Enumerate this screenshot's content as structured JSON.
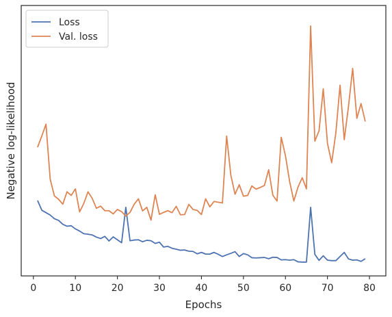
{
  "chart_data": {
    "type": "line",
    "title": "",
    "xlabel": "Epochs",
    "ylabel": "Negative log-likelihood",
    "xlim": [
      -2.9,
      83.9
    ],
    "ylim": [
      0,
      100
    ],
    "xticks": [
      0,
      10,
      20,
      30,
      40,
      50,
      60,
      70,
      80
    ],
    "y_tick_labels_shown": false,
    "grid": false,
    "legend": "upper left",
    "x": [
      1,
      2,
      3,
      4,
      5,
      6,
      7,
      8,
      9,
      10,
      11,
      12,
      13,
      14,
      15,
      16,
      17,
      18,
      19,
      20,
      21,
      22,
      23,
      24,
      25,
      26,
      27,
      28,
      29,
      30,
      31,
      32,
      33,
      34,
      35,
      36,
      37,
      38,
      39,
      40,
      41,
      42,
      43,
      44,
      45,
      46,
      47,
      48,
      49,
      50,
      51,
      52,
      53,
      54,
      55,
      56,
      57,
      58,
      59,
      60,
      61,
      62,
      63,
      64,
      65,
      66,
      67,
      68,
      69,
      70,
      71,
      72,
      73,
      74,
      75,
      76,
      77,
      78,
      79
    ],
    "series": [
      {
        "name": "Loss",
        "color": "#4c72b0",
        "values": [
          28,
          24,
          23,
          22,
          20.5,
          19.8,
          18.2,
          17.4,
          17.6,
          16.3,
          15.4,
          14.3,
          14.1,
          13.8,
          12.9,
          12.3,
          13.2,
          11.3,
          13,
          11.8,
          10.6,
          25.2,
          11.4,
          11.7,
          11.8,
          11,
          11.6,
          11.4,
          10.3,
          10.8,
          8.8,
          9.1,
          8.3,
          7.9,
          7.5,
          7.6,
          7.1,
          7,
          6,
          6.6,
          5.9,
          5.9,
          6.6,
          5.8,
          4.9,
          5.6,
          6.2,
          6.9,
          4.9,
          6.1,
          5.6,
          4.4,
          4.3,
          4.4,
          4.5,
          4,
          4.6,
          4.5,
          3.5,
          3.6,
          3.4,
          3.6,
          2.7,
          2.6,
          2.6,
          25.2,
          5.8,
          3.3,
          5.2,
          3.4,
          3.2,
          3.2,
          4.9,
          6.6,
          3.9,
          3.4,
          3.5,
          2.9,
          4
        ]
      },
      {
        "name": "Val. loss",
        "color": "#dd8452",
        "values": [
          50,
          54.6,
          59.5,
          36.8,
          29.9,
          28.5,
          26.5,
          31.6,
          30.1,
          32.8,
          23.3,
          26.8,
          31.6,
          28.9,
          24.8,
          25.7,
          23.8,
          23.8,
          22.5,
          24.3,
          23.4,
          21.6,
          23.1,
          26.5,
          28.7,
          23.7,
          25.2,
          19.9,
          30.4,
          22.3,
          23.1,
          23.8,
          23,
          25.6,
          22.1,
          22.2,
          26.4,
          24.3,
          23.9,
          22.2,
          28.7,
          25.4,
          27.6,
          27.3,
          27,
          54.6,
          38.5,
          30.6,
          34.5,
          29.8,
          30.1,
          34,
          32.7,
          33.4,
          34.2,
          40.7,
          30.2,
          27.8,
          54.1,
          46.5,
          35.8,
          27.8,
          33.6,
          37.4,
          32.8,
          100,
          52.5,
          56.8,
          74.1,
          51.6,
          43.6,
          55.9,
          75.6,
          53.1,
          66.7,
          82.5,
          61.9,
          68,
          60.6
        ]
      }
    ]
  }
}
